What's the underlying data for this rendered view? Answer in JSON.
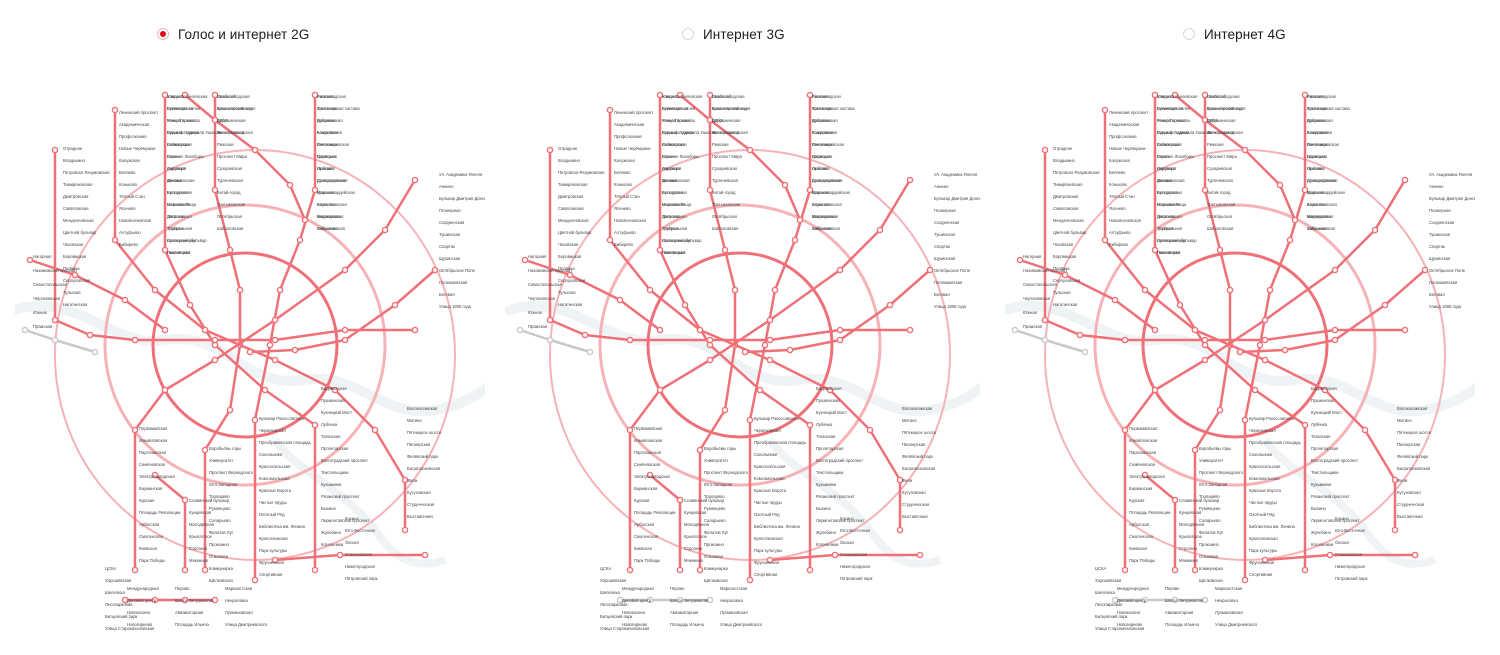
{
  "tabs": [
    {
      "label": "Голос и интернет 2G",
      "selected": true
    },
    {
      "label": "Интернет 3G",
      "selected": false
    },
    {
      "label": "Интернет 4G",
      "selected": false
    }
  ],
  "colors": {
    "accent": "#e30613",
    "coverage": "#f07078",
    "coverage_light": "#f6b3b7",
    "no_coverage": "#c9c9c9",
    "river": "#eef3f6"
  },
  "maps": [
    {
      "name": "coverage-map-2g"
    },
    {
      "name": "coverage-map-3g"
    },
    {
      "name": "coverage-map-4g"
    }
  ],
  "stations": [
    {
      "name": "Ховрино"
    },
    {
      "name": "Беломорская"
    },
    {
      "name": "Речной вокзал"
    },
    {
      "name": "Водный стадион"
    },
    {
      "name": "Войковская"
    },
    {
      "name": "Сокол"
    },
    {
      "name": "Аэропорт"
    },
    {
      "name": "Динамо"
    },
    {
      "name": "Белорусская"
    },
    {
      "name": "Маяковская"
    },
    {
      "name": "Тверская"
    },
    {
      "name": "Театральная"
    },
    {
      "name": "Новокузнецкая"
    },
    {
      "name": "Павелецкая"
    },
    {
      "name": "Автозаводская"
    },
    {
      "name": "Технопарк"
    },
    {
      "name": "Коломенская"
    },
    {
      "name": "Каширская"
    },
    {
      "name": "Кантемировская"
    },
    {
      "name": "Царицыно"
    },
    {
      "name": "Орехово"
    },
    {
      "name": "Домодедовская"
    },
    {
      "name": "Красногвардейская"
    },
    {
      "name": "Алма-Атинская"
    },
    {
      "name": "Медведково"
    },
    {
      "name": "Бабушкинская"
    },
    {
      "name": "Свиблово"
    },
    {
      "name": "Ботанический сад"
    },
    {
      "name": "ВДНХ"
    },
    {
      "name": "Алексеевская"
    },
    {
      "name": "Рижская"
    },
    {
      "name": "Проспект Мира"
    },
    {
      "name": "Сухаревская"
    },
    {
      "name": "Тургеневская"
    },
    {
      "name": "Китай-город"
    },
    {
      "name": "Третьяковская"
    },
    {
      "name": "Октябрьская"
    },
    {
      "name": "Шаболовская"
    },
    {
      "name": "Ленинский проспект"
    },
    {
      "name": "Академическая"
    },
    {
      "name": "Профсоюзная"
    },
    {
      "name": "Новые Черёмушки"
    },
    {
      "name": "Калужская"
    },
    {
      "name": "Беляево"
    },
    {
      "name": "Коньково"
    },
    {
      "name": "Тёплый Стан"
    },
    {
      "name": "Ясенево"
    },
    {
      "name": "Новоясеневская"
    },
    {
      "name": "Алтуфьево"
    },
    {
      "name": "Бибирево"
    },
    {
      "name": "Отрадное"
    },
    {
      "name": "Владыкино"
    },
    {
      "name": "Петровско-Разумовская"
    },
    {
      "name": "Тимирязевская"
    },
    {
      "name": "Дмитровская"
    },
    {
      "name": "Савёловская"
    },
    {
      "name": "Менделеевская"
    },
    {
      "name": "Цветной бульвар"
    },
    {
      "name": "Чеховская"
    },
    {
      "name": "Боровицкая"
    },
    {
      "name": "Полянка"
    },
    {
      "name": "Серпуховская"
    },
    {
      "name": "Тульская"
    },
    {
      "name": "Нагатинская"
    },
    {
      "name": "Нагорная"
    },
    {
      "name": "Нахимовский проспект"
    },
    {
      "name": "Севастопольская"
    },
    {
      "name": "Чертановская"
    },
    {
      "name": "Южная"
    },
    {
      "name": "Пражская"
    },
    {
      "name": "Ул. Академика Янгеля"
    },
    {
      "name": "Аннино"
    },
    {
      "name": "Бульвар Дмитрия Донского"
    },
    {
      "name": "Планерная"
    },
    {
      "name": "Сходненская"
    },
    {
      "name": "Тушинская"
    },
    {
      "name": "Спартак"
    },
    {
      "name": "Щукинская"
    },
    {
      "name": "Октябрьское Поле"
    },
    {
      "name": "Полежаевская"
    },
    {
      "name": "Беговая"
    },
    {
      "name": "Улица 1905 года"
    },
    {
      "name": "Баррикадная"
    },
    {
      "name": "Пушкинская"
    },
    {
      "name": "Кузнецкий Мост"
    },
    {
      "name": "Лубянка"
    },
    {
      "name": "Таганская"
    },
    {
      "name": "Пролетарская"
    },
    {
      "name": "Волгоградский проспект"
    },
    {
      "name": "Текстильщики"
    },
    {
      "name": "Кузьминки"
    },
    {
      "name": "Рязанский проспект"
    },
    {
      "name": "Выхино"
    },
    {
      "name": "Лермонтовский проспект"
    },
    {
      "name": "Жулебино"
    },
    {
      "name": "Котельники"
    },
    {
      "name": "Бульвар Рокоссовского"
    },
    {
      "name": "Черкизовская"
    },
    {
      "name": "Преображенская площадь"
    },
    {
      "name": "Сокольники"
    },
    {
      "name": "Красносельская"
    },
    {
      "name": "Комсомольская"
    },
    {
      "name": "Красные Ворота"
    },
    {
      "name": "Чистые пруды"
    },
    {
      "name": "Охотный Ряд"
    },
    {
      "name": "Библиотека им. Ленина"
    },
    {
      "name": "Кропоткинская"
    },
    {
      "name": "Парк культуры"
    },
    {
      "name": "Фрунзенская"
    },
    {
      "name": "Спортивная"
    },
    {
      "name": "Воробьёвы горы"
    },
    {
      "name": "Университет"
    },
    {
      "name": "Проспект Вернадского"
    },
    {
      "name": "Юго-Западная"
    },
    {
      "name": "Тропарёво"
    },
    {
      "name": "Румянцево"
    },
    {
      "name": "Саларьево"
    },
    {
      "name": "Филатов Луг"
    },
    {
      "name": "Прокшино"
    },
    {
      "name": "Ольховая"
    },
    {
      "name": "Коммунарка"
    },
    {
      "name": "Щёлковская"
    },
    {
      "name": "Первомайская"
    },
    {
      "name": "Измайловская"
    },
    {
      "name": "Партизанская"
    },
    {
      "name": "Семёновская"
    },
    {
      "name": "Электрозаводская"
    },
    {
      "name": "Бауманская"
    },
    {
      "name": "Курская"
    },
    {
      "name": "Площадь Революции"
    },
    {
      "name": "Арбатская"
    },
    {
      "name": "Смоленская"
    },
    {
      "name": "Киевская"
    },
    {
      "name": "Парк Победы"
    },
    {
      "name": "Славянский бульвар"
    },
    {
      "name": "Кунцевская"
    },
    {
      "name": "Молодёжная"
    },
    {
      "name": "Крылатское"
    },
    {
      "name": "Строгино"
    },
    {
      "name": "Мякинино"
    },
    {
      "name": "Волоколамская"
    },
    {
      "name": "Митино"
    },
    {
      "name": "Пятницкое шоссе"
    },
    {
      "name": "Пионерская"
    },
    {
      "name": "Филёвский парк"
    },
    {
      "name": "Багратионовская"
    },
    {
      "name": "Фили"
    },
    {
      "name": "Кутузовская"
    },
    {
      "name": "Студенческая"
    },
    {
      "name": "Выставочная"
    },
    {
      "name": "Международная"
    },
    {
      "name": "Деловой центр"
    },
    {
      "name": "Новокосино"
    },
    {
      "name": "Новогиреево"
    },
    {
      "name": "Перово"
    },
    {
      "name": "Шоссе Энтузиастов"
    },
    {
      "name": "Авиамоторная"
    },
    {
      "name": "Площадь Ильича"
    },
    {
      "name": "Марксистская"
    },
    {
      "name": "Некрасовка"
    },
    {
      "name": "Лухмановская"
    },
    {
      "name": "Улица Дмитриевского"
    },
    {
      "name": "Косино"
    },
    {
      "name": "Юго-Восточная"
    },
    {
      "name": "Окская"
    },
    {
      "name": "Стахановская"
    },
    {
      "name": "Нижегородская"
    },
    {
      "name": "Петровский парк"
    },
    {
      "name": "ЦСКА"
    },
    {
      "name": "Хорошёвская"
    },
    {
      "name": "Шелепиха"
    },
    {
      "name": "Лесопарковая"
    },
    {
      "name": "Битцевский парк"
    },
    {
      "name": "Улица Старокачаловская"
    },
    {
      "name": "Улица Скобелевская"
    },
    {
      "name": "Бунинская аллея"
    },
    {
      "name": "Улица Горчакова"
    },
    {
      "name": "Бульвар Адмирала Ушакова"
    },
    {
      "name": "Селигерская"
    },
    {
      "name": "Верхние Лихоборы"
    },
    {
      "name": "Окружная"
    },
    {
      "name": "Фонвизинская"
    },
    {
      "name": "Бутырская"
    },
    {
      "name": "Марьина Роща"
    },
    {
      "name": "Достоевская"
    },
    {
      "name": "Трубная"
    },
    {
      "name": "Сретенский бульвар"
    },
    {
      "name": "Чкаловская"
    },
    {
      "name": "Римская"
    },
    {
      "name": "Крестьянская застава"
    },
    {
      "name": "Дубровка"
    },
    {
      "name": "Кожуховская"
    },
    {
      "name": "Печатники"
    },
    {
      "name": "Волжская"
    },
    {
      "name": "Люблино"
    },
    {
      "name": "Братиславская"
    },
    {
      "name": "Марьино"
    },
    {
      "name": "Борисово"
    },
    {
      "name": "Шипиловская"
    },
    {
      "name": "Зябликово"
    },
    {
      "name": "Новослободская"
    },
    {
      "name": "Краснопресненская"
    },
    {
      "name": "Добрынинская"
    },
    {
      "name": "Электрозаводская"
    }
  ]
}
